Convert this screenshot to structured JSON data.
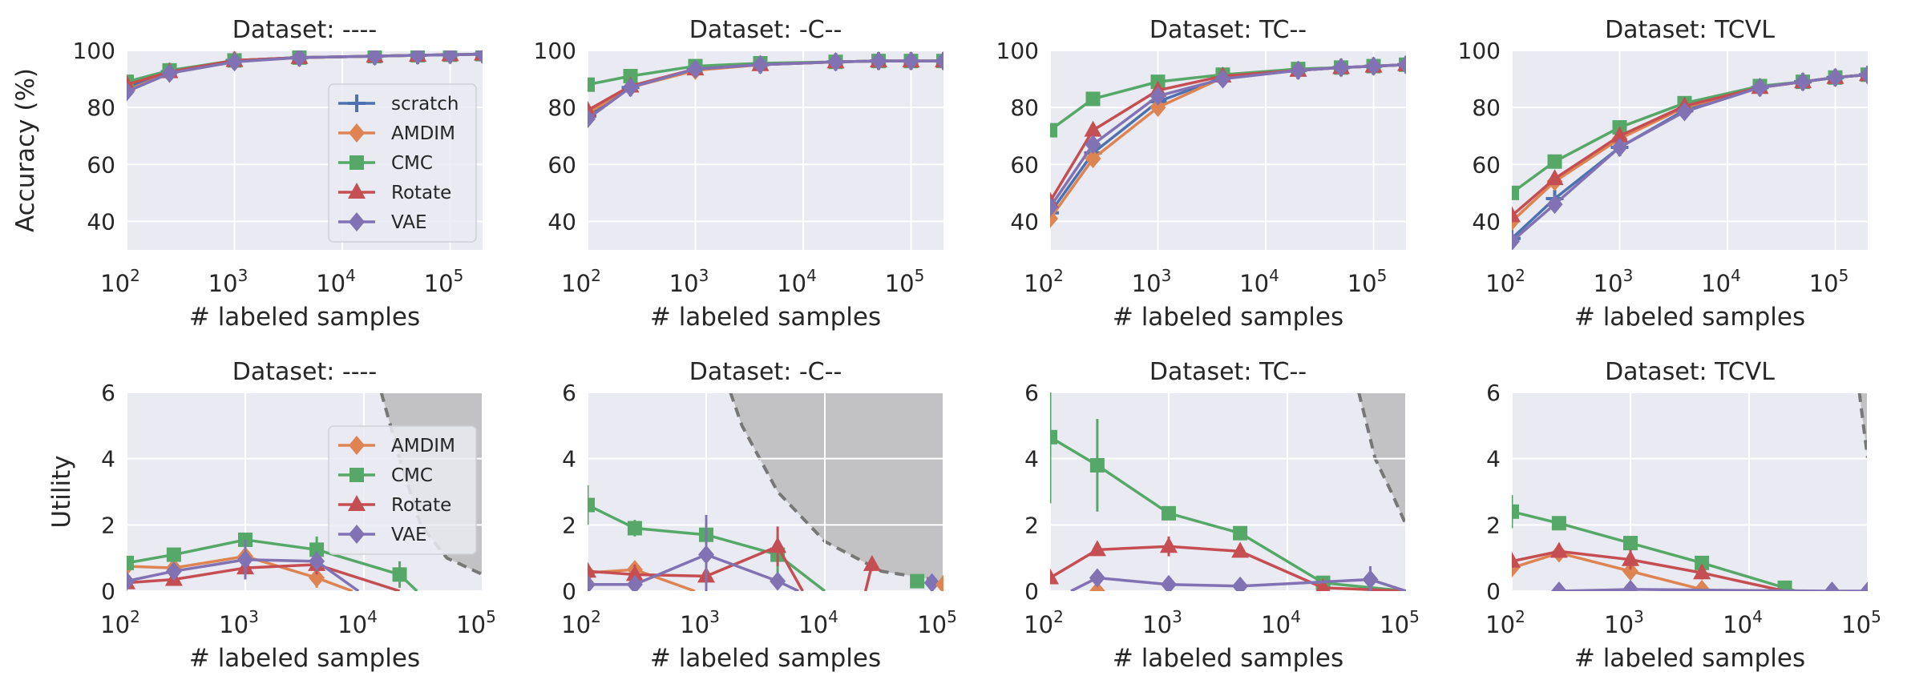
{
  "figure": {
    "x_axis_label": "# labeled samples"
  },
  "colors": {
    "scratch": "#4C72B0",
    "AMDIM": "#DD8452",
    "CMC": "#55A868",
    "Rotate": "#C44E52",
    "VAE": "#8172B3",
    "panel_bg": "#EAEAF2",
    "grid": "#FFFFFF",
    "shade": "#C2C2C4"
  },
  "chart_data": [
    {
      "type": "line",
      "title": "Dataset: ----",
      "xlabel": "# labeled samples",
      "ylabel": "Accuracy (%)",
      "xscale": "log",
      "xlim": [
        100,
        200000
      ],
      "ylim": [
        30,
        100
      ],
      "yticks": [
        40,
        60,
        80,
        100
      ],
      "xtick_exponents": [
        2,
        3,
        4,
        5
      ],
      "legend": "right",
      "x": [
        100,
        250,
        1000,
        4000,
        20000,
        50000,
        100000,
        200000
      ],
      "series": [
        {
          "name": "scratch",
          "marker": "plus",
          "values": [
            87,
            92.5,
            96.5,
            97.5,
            98,
            98.3,
            98.5,
            98.7
          ]
        },
        {
          "name": "AMDIM",
          "marker": "diamond",
          "values": [
            86,
            92,
            96.5,
            97.5,
            98,
            98.3,
            98.5,
            98.7
          ]
        },
        {
          "name": "CMC",
          "marker": "square",
          "values": [
            89,
            93,
            96.5,
            97.5,
            98,
            98.3,
            98.5,
            98.7
          ]
        },
        {
          "name": "Rotate",
          "marker": "triangle",
          "values": [
            88,
            92.5,
            96.5,
            97.5,
            98,
            98.3,
            98.5,
            98.7
          ]
        },
        {
          "name": "VAE",
          "marker": "diamond",
          "values": [
            85.5,
            92,
            96,
            97.5,
            98,
            98.3,
            98.5,
            98.7
          ]
        }
      ]
    },
    {
      "type": "line",
      "title": "Dataset: -C--",
      "xlabel": "# labeled samples",
      "ylabel": "",
      "xscale": "log",
      "xlim": [
        100,
        200000
      ],
      "ylim": [
        30,
        100
      ],
      "yticks": [
        40,
        60,
        80,
        100
      ],
      "xtick_exponents": [
        2,
        3,
        4,
        5
      ],
      "x": [
        100,
        250,
        1000,
        4000,
        20000,
        50000,
        100000,
        200000
      ],
      "series": [
        {
          "name": "scratch",
          "marker": "plus",
          "values": [
            77,
            87,
            93.5,
            95,
            96,
            96.3,
            96.3,
            96.3
          ]
        },
        {
          "name": "AMDIM",
          "marker": "diamond",
          "values": [
            78,
            87,
            93,
            95,
            96,
            96.3,
            96.3,
            96.3
          ]
        },
        {
          "name": "CMC",
          "marker": "square",
          "values": [
            88,
            91,
            94.5,
            95.5,
            96,
            96.3,
            96.3,
            96.3
          ]
        },
        {
          "name": "Rotate",
          "marker": "triangle",
          "values": [
            79,
            87.5,
            93.5,
            95,
            96,
            96.3,
            96.3,
            96.3
          ]
        },
        {
          "name": "VAE",
          "marker": "diamond",
          "values": [
            76,
            87,
            93.5,
            95,
            96,
            96.3,
            96.3,
            96.3
          ]
        }
      ]
    },
    {
      "type": "line",
      "title": "Dataset: TC--",
      "xlabel": "# labeled samples",
      "ylabel": "",
      "xscale": "log",
      "xlim": [
        100,
        200000
      ],
      "ylim": [
        30,
        100
      ],
      "yticks": [
        40,
        60,
        80,
        100
      ],
      "xtick_exponents": [
        2,
        3,
        4,
        5
      ],
      "x": [
        100,
        250,
        1000,
        4000,
        20000,
        50000,
        100000,
        200000
      ],
      "series": [
        {
          "name": "scratch",
          "marker": "plus",
          "values": [
            43,
            64,
            82,
            90.5,
            93,
            94,
            94.5,
            95
          ]
        },
        {
          "name": "AMDIM",
          "marker": "diamond",
          "values": [
            41,
            62,
            80,
            90.5,
            93,
            94,
            94.5,
            95
          ]
        },
        {
          "name": "CMC",
          "marker": "square",
          "values": [
            72,
            83,
            89,
            91.5,
            93.5,
            94,
            94.5,
            95
          ]
        },
        {
          "name": "Rotate",
          "marker": "triangle",
          "values": [
            47,
            72,
            86,
            91,
            93,
            94,
            94.5,
            95
          ]
        },
        {
          "name": "VAE",
          "marker": "diamond",
          "values": [
            45,
            67,
            84,
            90,
            93,
            94,
            94.5,
            95
          ]
        }
      ]
    },
    {
      "type": "line",
      "title": "Dataset: TCVL",
      "xlabel": "# labeled samples",
      "ylabel": "",
      "xscale": "log",
      "xlim": [
        100,
        200000
      ],
      "ylim": [
        30,
        100
      ],
      "yticks": [
        40,
        60,
        80,
        100
      ],
      "xtick_exponents": [
        2,
        3,
        4,
        5
      ],
      "x": [
        100,
        250,
        1000,
        4000,
        20000,
        50000,
        100000,
        200000
      ],
      "series": [
        {
          "name": "scratch",
          "marker": "plus",
          "values": [
            34,
            48,
            66,
            79,
            87,
            89,
            90.5,
            91.5
          ]
        },
        {
          "name": "AMDIM",
          "marker": "diamond",
          "values": [
            40,
            54,
            69,
            80,
            87,
            89,
            90.5,
            91.5
          ]
        },
        {
          "name": "CMC",
          "marker": "square",
          "values": [
            50,
            61,
            73,
            81.5,
            87.5,
            89,
            90.5,
            91.5
          ]
        },
        {
          "name": "Rotate",
          "marker": "triangle",
          "values": [
            42,
            55,
            70,
            80.5,
            87,
            89,
            90.5,
            91.5
          ]
        },
        {
          "name": "VAE",
          "marker": "diamond",
          "values": [
            33,
            46,
            66,
            78.5,
            87,
            89,
            90.5,
            91.5
          ]
        }
      ]
    },
    {
      "type": "line",
      "title": "Dataset: ----",
      "xlabel": "# labeled samples",
      "ylabel": "Utility",
      "xscale": "log",
      "xlim": [
        100,
        100000
      ],
      "ylim": [
        0,
        6
      ],
      "yticks": [
        0,
        2,
        4,
        6
      ],
      "xtick_exponents": [
        2,
        3,
        4,
        5
      ],
      "legend": "right",
      "shaded_region": {
        "boundary_x": [
          14000,
          20000,
          30000,
          50000,
          100000
        ],
        "boundary_y": [
          6,
          4,
          2,
          1,
          0.5
        ]
      },
      "series": [
        {
          "name": "AMDIM",
          "marker": "diamond",
          "x": [
            100,
            250,
            1000,
            4000
          ],
          "values": [
            0.75,
            0.7,
            1.05,
            0.4
          ],
          "err": [
            0.1,
            0.1,
            0.2,
            0.3
          ],
          "tail_x": 8000,
          "tail_y": 0
        },
        {
          "name": "CMC",
          "marker": "square",
          "x": [
            100,
            250,
            1000,
            4000,
            20000
          ],
          "values": [
            0.85,
            1.1,
            1.55,
            1.25,
            0.5
          ],
          "err": [
            0.1,
            0.2,
            0.2,
            0.4,
            0.4
          ],
          "tail_x": 28000,
          "tail_y": 0
        },
        {
          "name": "Rotate",
          "marker": "triangle",
          "x": [
            100,
            250,
            1000,
            4000
          ],
          "values": [
            0.25,
            0.35,
            0.7,
            0.8
          ],
          "err": [
            0.1,
            0.15,
            0.25,
            0.3
          ],
          "tail_x": 20000,
          "tail_y": 0
        },
        {
          "name": "VAE",
          "marker": "diamond",
          "x": [
            100,
            250,
            1000,
            4000
          ],
          "values": [
            0.3,
            0.6,
            0.95,
            0.9
          ],
          "err": [
            0.1,
            0.15,
            0.6,
            0.3
          ],
          "tail_x": 9000,
          "tail_y": 0
        }
      ]
    },
    {
      "type": "line",
      "title": "Dataset: -C--",
      "xlabel": "# labeled samples",
      "ylabel": "",
      "xscale": "log",
      "xlim": [
        100,
        100000
      ],
      "ylim": [
        0,
        6
      ],
      "yticks": [
        0,
        2,
        4,
        6
      ],
      "xtick_exponents": [
        2,
        3,
        4,
        5
      ],
      "shaded_region": {
        "boundary_x": [
          1600,
          2000,
          4000,
          10000,
          30000,
          100000
        ],
        "boundary_y": [
          6,
          5,
          3,
          1.5,
          0.6,
          0.3
        ]
      },
      "series": [
        {
          "name": "AMDIM",
          "marker": "diamond",
          "x": [
            100,
            250
          ],
          "values": [
            0.55,
            0.65
          ],
          "err": [
            0.2,
            0.15
          ],
          "tail_x": 800,
          "tail_y": 0
        },
        {
          "name": "CMC",
          "marker": "square",
          "x": [
            100,
            250,
            1000,
            4000
          ],
          "values": [
            2.6,
            1.9,
            1.7,
            1.1
          ],
          "err": [
            0.6,
            0.25,
            0.2,
            0.6
          ],
          "tail_x": 10000,
          "tail_y": 0
        },
        {
          "name": "Rotate",
          "marker": "triangle",
          "x": [
            100,
            250,
            1000,
            4000
          ],
          "values": [
            0.6,
            0.5,
            0.45,
            1.35
          ],
          "err": [
            0.2,
            0.3,
            0.5,
            0.6
          ],
          "tail_x": 6500,
          "tail_y": 0
        },
        {
          "name": "Rotate",
          "marker": "triangle",
          "x": [
            25000
          ],
          "values": [
            0.8
          ],
          "err": [
            0.2
          ],
          "head_x": 22000,
          "head_y": 0
        },
        {
          "name": "VAE",
          "marker": "diamond",
          "x": [
            100,
            250,
            1000,
            4000
          ],
          "values": [
            0.2,
            0.2,
            1.1,
            0.3
          ],
          "err": [
            0.1,
            0.1,
            1.2,
            0.1
          ],
          "tail_x": 6000,
          "tail_y": 0
        },
        {
          "name": "CMC",
          "marker": "square",
          "x": [
            60000
          ],
          "values": [
            0.3
          ],
          "err": [
            0.1
          ]
        },
        {
          "name": "VAE",
          "marker": "diamond",
          "x": [
            80000
          ],
          "values": [
            0.25
          ],
          "err": [
            0.1
          ]
        },
        {
          "name": "AMDIM",
          "marker": "diamond",
          "x": [
            100000
          ],
          "values": [
            0.2
          ],
          "err": [
            0.1
          ]
        }
      ]
    },
    {
      "type": "line",
      "title": "Dataset: TC--",
      "xlabel": "# labeled samples",
      "ylabel": "",
      "xscale": "log",
      "xlim": [
        100,
        100000
      ],
      "ylim": [
        0,
        6
      ],
      "yticks": [
        0,
        2,
        4,
        6
      ],
      "xtick_exponents": [
        2,
        3,
        4,
        5
      ],
      "shaded_region": {
        "boundary_x": [
          40000,
          55000,
          75000,
          100000
        ],
        "boundary_y": [
          6,
          4,
          3,
          2
        ]
      },
      "series": [
        {
          "name": "AMDIM",
          "marker": "diamond",
          "x": [
            250
          ],
          "values": [
            0.0
          ],
          "err": [
            0.05
          ]
        },
        {
          "name": "CMC",
          "marker": "square",
          "x": [
            100,
            250,
            1000,
            4000,
            20000
          ],
          "values": [
            4.65,
            3.8,
            2.35,
            1.75,
            0.25
          ],
          "err": [
            2.0,
            1.4,
            0.15,
            0.15,
            0.15
          ],
          "tail_x": 100000,
          "tail_y": 0
        },
        {
          "name": "Rotate",
          "marker": "triangle",
          "x": [
            100,
            250,
            1000,
            4000,
            20000
          ],
          "values": [
            0.4,
            1.25,
            1.35,
            1.2,
            0.1
          ],
          "err": [
            0.15,
            0.15,
            0.3,
            0.15,
            0.1
          ],
          "tail_x": 100000,
          "tail_y": 0
        },
        {
          "name": "VAE",
          "marker": "diamond",
          "x": [
            250,
            1000,
            4000,
            50000
          ],
          "values": [
            0.4,
            0.2,
            0.15,
            0.35
          ],
          "err": [
            0.1,
            0.1,
            0.1,
            0.4
          ],
          "head_x": 150,
          "head_y": 0,
          "tail_x": 100000,
          "tail_y": 0
        }
      ]
    },
    {
      "type": "line",
      "title": "Dataset: TCVL",
      "xlabel": "# labeled samples",
      "ylabel": "",
      "xscale": "log",
      "xlim": [
        100,
        100000
      ],
      "ylim": [
        0,
        6
      ],
      "yticks": [
        0,
        2,
        4,
        6
      ],
      "xtick_exponents": [
        2,
        3,
        4,
        5
      ],
      "shaded_region": {
        "boundary_x": [
          85000,
          92000,
          100000
        ],
        "boundary_y": [
          6,
          5,
          4
        ]
      },
      "series": [
        {
          "name": "AMDIM",
          "marker": "diamond",
          "x": [
            100,
            250,
            1000,
            4000
          ],
          "values": [
            0.7,
            1.15,
            0.6,
            0.05
          ],
          "err": [
            0.15,
            0.2,
            0.2,
            0.1
          ],
          "tail_x": 6000,
          "tail_y": 0
        },
        {
          "name": "CMC",
          "marker": "square",
          "x": [
            100,
            250,
            1000,
            4000,
            20000
          ],
          "values": [
            2.4,
            2.05,
            1.45,
            0.85,
            0.1
          ],
          "err": [
            0.5,
            0.15,
            0.1,
            0.1,
            0.1
          ],
          "tail_x": 25000,
          "tail_y": 0
        },
        {
          "name": "Rotate",
          "marker": "triangle",
          "x": [
            100,
            250,
            1000,
            4000
          ],
          "values": [
            0.9,
            1.2,
            0.95,
            0.55
          ],
          "err": [
            0.2,
            0.2,
            0.3,
            0.2
          ],
          "tail_x": 20000,
          "tail_y": 0
        },
        {
          "name": "VAE",
          "marker": "diamond",
          "x": [
            250,
            1000,
            50000,
            100000
          ],
          "values": [
            0.0,
            0.05,
            0.0,
            0.0
          ],
          "err": [
            0.05,
            0.05,
            0.05,
            0.05
          ]
        }
      ]
    }
  ]
}
